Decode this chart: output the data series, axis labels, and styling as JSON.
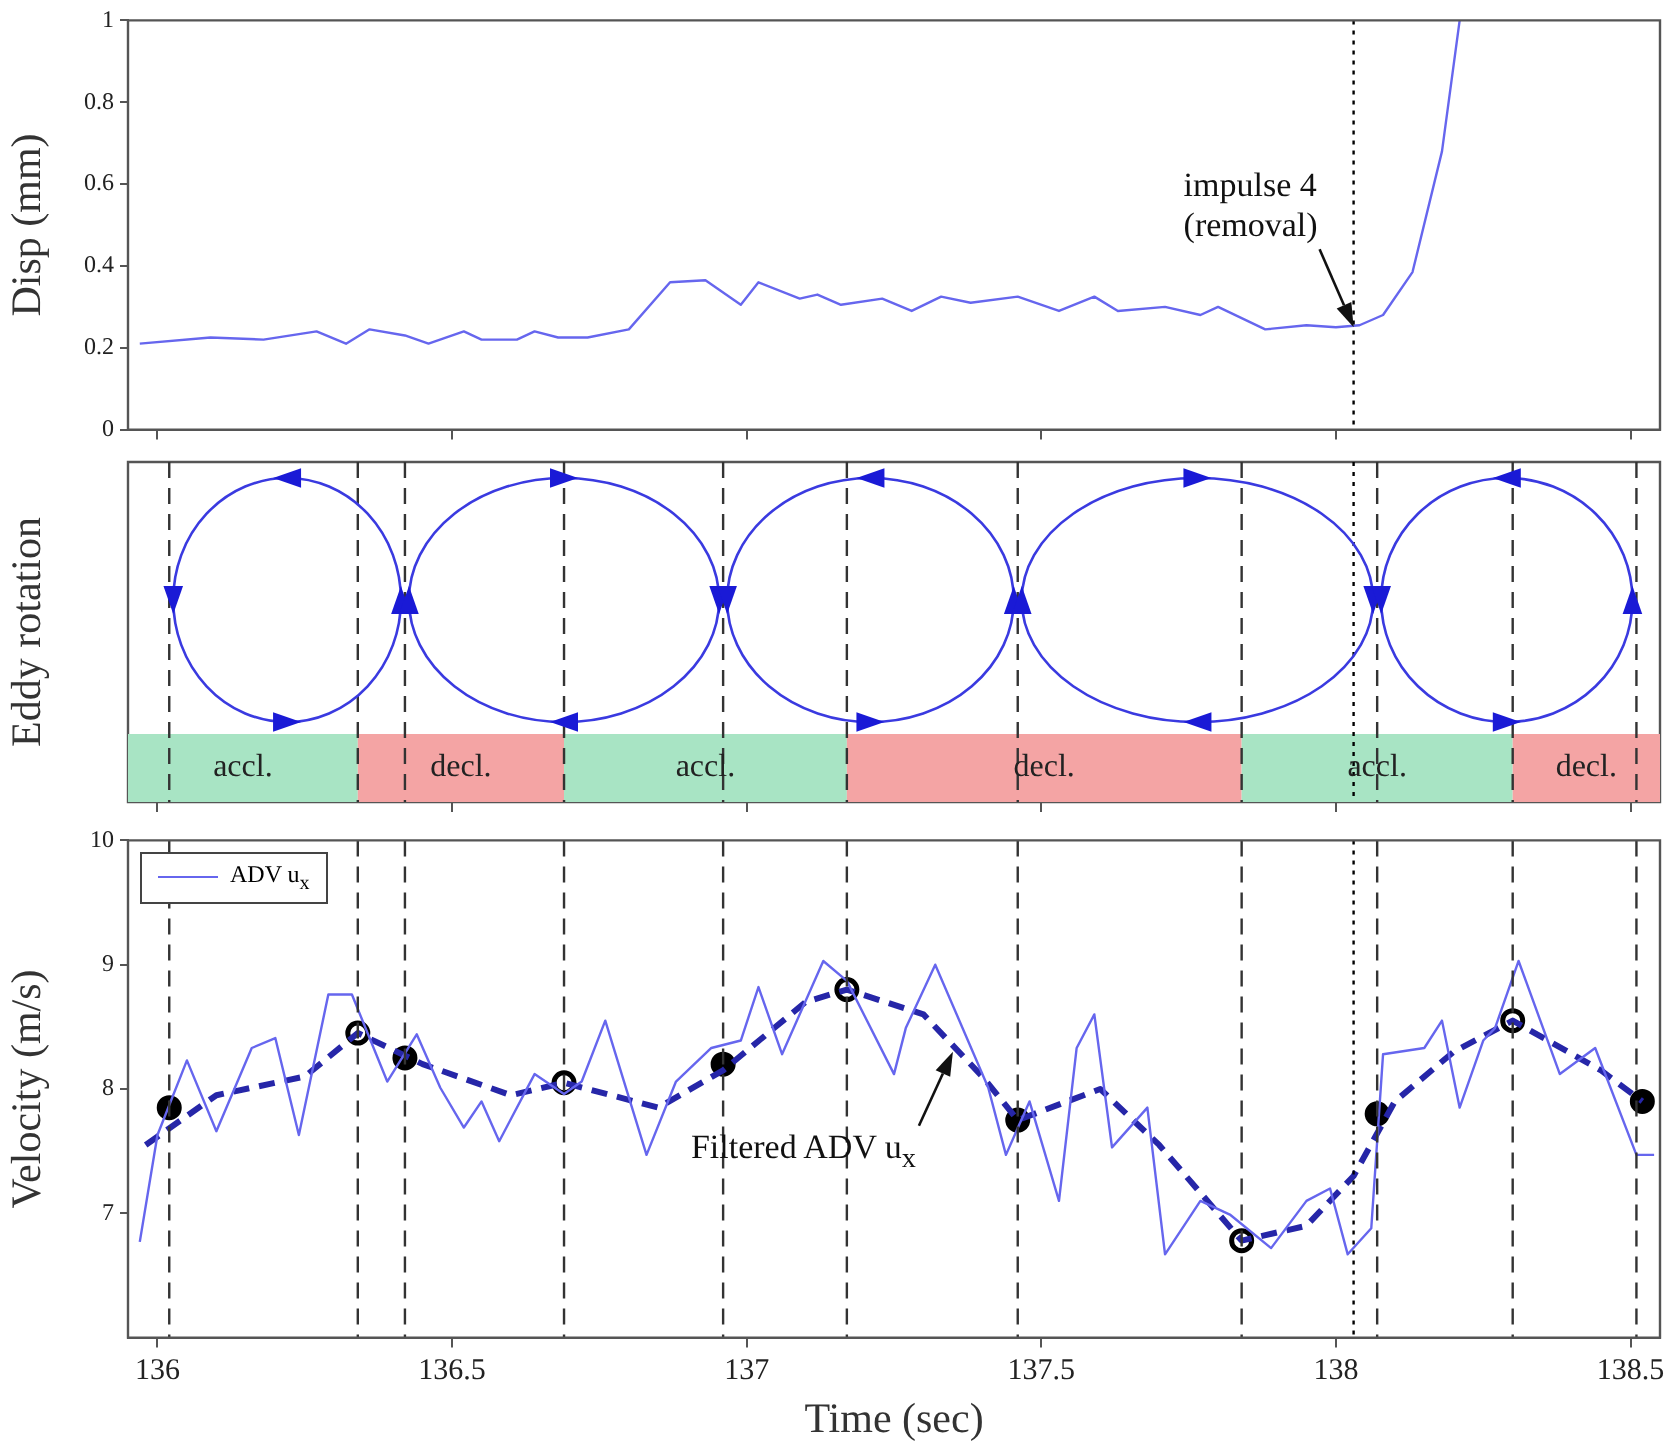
{
  "chart_data": [
    {
      "type": "line",
      "ylabel": "Disp (mm)",
      "xlim": [
        135.95,
        138.55
      ],
      "xticks": [
        136,
        136.5,
        137,
        137.5,
        138,
        138.5
      ],
      "ylim": [
        0,
        1
      ],
      "yticks": [
        0,
        0.2,
        0.4,
        0.6,
        0.8,
        1
      ],
      "tick_labels": "y",
      "series": [
        {
          "color": "#6666ee",
          "line_style": "solid",
          "marker": "none",
          "x": [
            135.97,
            136.09,
            136.18,
            136.27,
            136.32,
            136.36,
            136.42,
            136.46,
            136.52,
            136.55,
            136.61,
            136.64,
            136.68,
            136.73,
            136.8,
            136.87,
            136.93,
            136.99,
            137.02,
            137.09,
            137.12,
            137.16,
            137.23,
            137.28,
            137.33,
            137.38,
            137.46,
            137.53,
            137.59,
            137.63,
            137.71,
            137.77,
            137.8,
            137.88,
            137.95,
            138.0,
            138.04,
            138.08,
            138.13,
            138.18,
            138.21
          ],
          "values": [
            0.21,
            0.225,
            0.22,
            0.24,
            0.21,
            0.245,
            0.23,
            0.21,
            0.24,
            0.22,
            0.22,
            0.24,
            0.225,
            0.225,
            0.245,
            0.36,
            0.365,
            0.305,
            0.36,
            0.32,
            0.33,
            0.305,
            0.32,
            0.29,
            0.325,
            0.31,
            0.325,
            0.29,
            0.325,
            0.29,
            0.3,
            0.28,
            0.3,
            0.245,
            0.255,
            0.25,
            0.255,
            0.28,
            0.385,
            0.68,
            1.0
          ]
        }
      ],
      "ref_lines": [
        {
          "axis": "x",
          "value": 138.03,
          "color": "#000000",
          "line_style": "dotted"
        }
      ],
      "annotations": [
        {
          "text": "impulse  4\n(removal)",
          "x": 138.03,
          "y": 0.25
        }
      ]
    },
    {
      "type": "other",
      "ylabel": "Eddy rotation",
      "annotations": [
        "accl.",
        "decl.",
        "accl.",
        "decl.",
        "accl.",
        "decl."
      ]
    },
    {
      "type": "line",
      "xlabel": "Time (sec)",
      "ylabel": "Velocity (m/s)",
      "xlim": [
        135.95,
        138.55
      ],
      "xticks": [
        136,
        136.5,
        137,
        137.5,
        138,
        138.5
      ],
      "ylim": [
        6,
        10
      ],
      "yticks": [
        7,
        8,
        9,
        10
      ],
      "legend": "top left",
      "series": [
        {
          "name": "ADV u$_{x}$",
          "color": "#6666ee",
          "line_style": "solid",
          "marker": "none",
          "x": [
            135.97,
            136.0,
            136.05,
            136.1,
            136.16,
            136.2,
            136.24,
            136.29,
            136.33,
            136.39,
            136.44,
            136.48,
            136.52,
            136.55,
            136.58,
            136.64,
            136.69,
            136.72,
            136.76,
            136.83,
            136.88,
            136.94,
            136.99,
            137.02,
            137.06,
            137.13,
            137.17,
            137.25,
            137.27,
            137.32,
            137.41,
            137.44,
            137.48,
            137.53,
            137.56,
            137.59,
            137.62,
            137.68,
            137.71,
            137.77,
            137.82,
            137.89,
            137.95,
            137.99,
            138.02,
            138.06,
            138.08,
            138.15,
            138.18,
            138.21,
            138.25,
            138.27,
            138.31,
            138.38,
            138.44,
            138.51,
            138.54
          ],
          "values": [
            6.77,
            7.63,
            8.23,
            7.66,
            8.33,
            8.41,
            7.63,
            8.76,
            8.76,
            8.06,
            8.44,
            8.01,
            7.69,
            7.9,
            7.58,
            8.12,
            7.96,
            8.06,
            8.55,
            7.47,
            8.06,
            8.33,
            8.39,
            8.82,
            8.28,
            9.03,
            8.87,
            8.12,
            8.49,
            9.0,
            8.01,
            7.47,
            7.9,
            7.1,
            8.33,
            8.6,
            7.53,
            7.85,
            6.67,
            7.1,
            6.99,
            6.72,
            7.1,
            7.2,
            6.67,
            6.88,
            8.28,
            8.33,
            8.55,
            7.85,
            8.39,
            8.49,
            9.03,
            8.12,
            8.33,
            7.47,
            7.47
          ]
        },
        {
          "color": "#2626a8",
          "line_style": "dashed",
          "marker": "none",
          "x": [
            135.98,
            136.1,
            136.25,
            136.34,
            136.45,
            136.6,
            136.69,
            136.85,
            136.96,
            137.1,
            137.17,
            137.3,
            137.4,
            137.46,
            137.6,
            137.7,
            137.84,
            137.95,
            138.03,
            138.1,
            138.2,
            138.3,
            138.45,
            138.52
          ],
          "values": [
            7.55,
            7.95,
            8.1,
            8.45,
            8.2,
            7.95,
            8.05,
            7.85,
            8.15,
            8.7,
            8.8,
            8.6,
            8.1,
            7.75,
            8.0,
            7.55,
            6.78,
            6.9,
            7.3,
            7.9,
            8.3,
            8.55,
            8.15,
            7.9
          ]
        },
        {
          "type": "scatter",
          "color": "#000000",
          "marker": "circle",
          "x": [
            136.02,
            136.42,
            136.96,
            137.46,
            138.07,
            138.52
          ],
          "values": [
            7.85,
            8.25,
            8.2,
            7.75,
            7.8,
            7.9
          ]
        },
        {
          "type": "scatter",
          "color": "#ffffff",
          "marker": "circle",
          "x": [
            136.34,
            136.69,
            137.17,
            137.84,
            138.3
          ],
          "values": [
            8.45,
            8.05,
            8.8,
            6.78,
            8.55
          ]
        }
      ],
      "ref_lines": [
        {
          "axis": "x",
          "value": 136.02,
          "color": "#333333",
          "line_style": "dashed"
        },
        {
          "axis": "x",
          "value": 136.34,
          "color": "#333333",
          "line_style": "dashed"
        },
        {
          "axis": "x",
          "value": 136.42,
          "color": "#333333",
          "line_style": "dashed"
        },
        {
          "axis": "x",
          "value": 136.69,
          "color": "#333333",
          "line_style": "dashed"
        },
        {
          "axis": "x",
          "value": 136.96,
          "color": "#333333",
          "line_style": "dashed"
        },
        {
          "axis": "x",
          "value": 137.17,
          "color": "#333333",
          "line_style": "dashed"
        },
        {
          "axis": "x",
          "value": 137.46,
          "color": "#333333",
          "line_style": "dashed"
        },
        {
          "axis": "x",
          "value": 137.84,
          "color": "#333333",
          "line_style": "dashed"
        },
        {
          "axis": "x",
          "value": 138.07,
          "color": "#333333",
          "line_style": "dashed"
        },
        {
          "axis": "x",
          "value": 138.3,
          "color": "#333333",
          "line_style": "dashed"
        },
        {
          "axis": "x",
          "value": 138.51,
          "color": "#333333",
          "line_style": "dashed"
        },
        {
          "axis": "x",
          "value": 138.03,
          "color": "#000000",
          "line_style": "dotted"
        }
      ],
      "annotations": [
        {
          "text": "Filtered  ADV u$_{x}$",
          "x": 137.35,
          "y": 8.3
        }
      ]
    }
  ]
}
